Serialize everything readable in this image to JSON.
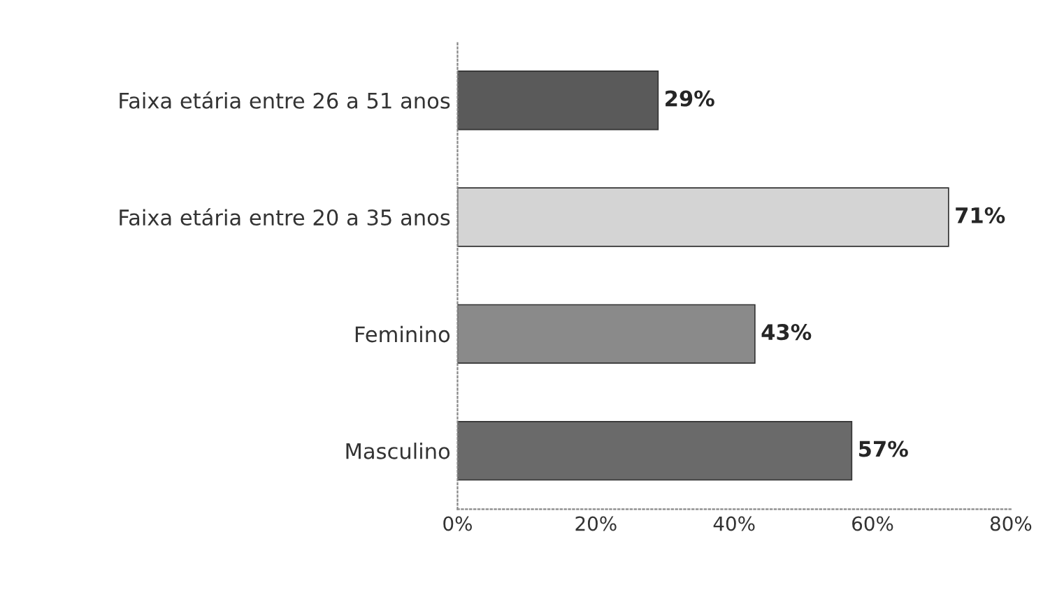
{
  "chart_data": {
    "type": "bar",
    "orientation": "horizontal",
    "categories": [
      "Faixa etária entre 26 a 51 anos",
      "Faixa etária entre 20 a 35 anos",
      "Feminino",
      "Masculino"
    ],
    "values": [
      29,
      71,
      43,
      57
    ],
    "value_labels": [
      "29%",
      "71%",
      "43%",
      "57%"
    ],
    "colors": [
      "#5a5a5a",
      "#d4d4d4",
      "#8a8a8a",
      "#6a6a6a"
    ],
    "xlim": [
      0,
      80
    ],
    "xticks": [
      {
        "value": 0,
        "label": "0%"
      },
      {
        "value": 20,
        "label": "20%"
      },
      {
        "value": 40,
        "label": "40%"
      },
      {
        "value": 60,
        "label": "60%"
      },
      {
        "value": 80,
        "label": "80%"
      }
    ],
    "grid": false,
    "legend": false
  }
}
